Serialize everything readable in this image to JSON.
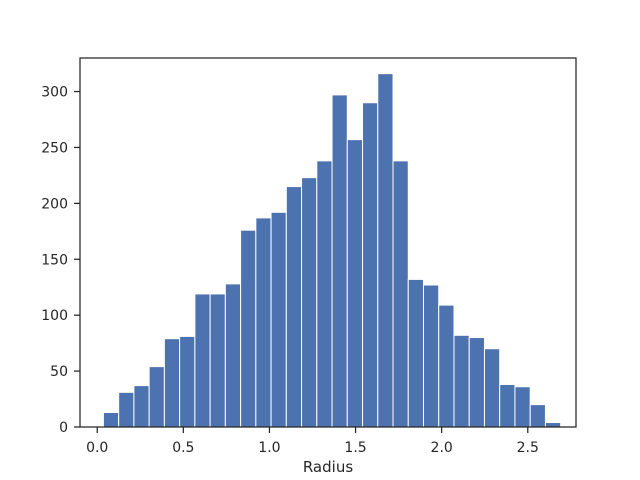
{
  "chart_data": {
    "type": "bar",
    "title": "",
    "xlabel": "Radius",
    "ylabel": "",
    "xlim": [
      -0.1,
      2.78
    ],
    "ylim": [
      0,
      330
    ],
    "grid": false,
    "bar_color": "#4c72b0",
    "bin_width": 0.0885,
    "bin_edges_start": 0.036,
    "values": [
      13,
      31,
      37,
      54,
      79,
      81,
      119,
      119,
      128,
      176,
      187,
      192,
      215,
      223,
      238,
      297,
      257,
      290,
      316,
      238,
      132,
      127,
      109,
      82,
      80,
      70,
      38,
      36,
      20,
      4
    ],
    "x_ticks": [
      {
        "value": 0.0,
        "label": "0.0"
      },
      {
        "value": 0.5,
        "label": "0.5"
      },
      {
        "value": 1.0,
        "label": "1.0"
      },
      {
        "value": 1.5,
        "label": "1.5"
      },
      {
        "value": 2.0,
        "label": "2.0"
      },
      {
        "value": 2.5,
        "label": "2.5"
      }
    ],
    "y_ticks": [
      {
        "value": 0,
        "label": "0"
      },
      {
        "value": 50,
        "label": "50"
      },
      {
        "value": 100,
        "label": "100"
      },
      {
        "value": 150,
        "label": "150"
      },
      {
        "value": 200,
        "label": "200"
      },
      {
        "value": 250,
        "label": "250"
      },
      {
        "value": 300,
        "label": "300"
      }
    ]
  }
}
